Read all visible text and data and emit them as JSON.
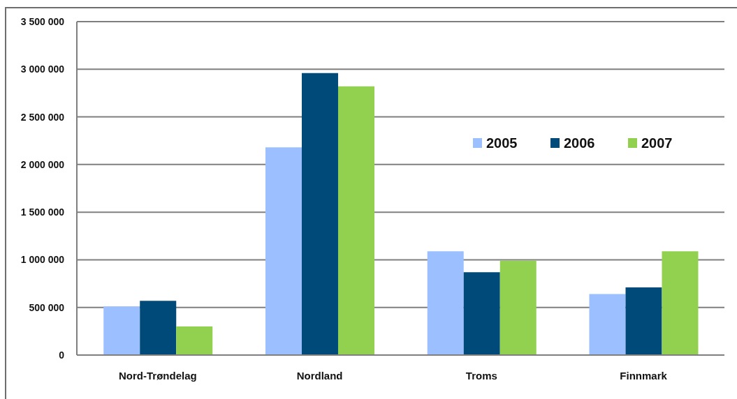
{
  "chart_data": {
    "type": "bar",
    "categories": [
      "Nord-Trøndelag",
      "Nordland",
      "Troms",
      "Finnmark"
    ],
    "series": [
      {
        "name": "2005",
        "color": "#9bbfff",
        "values": [
          510000,
          2180000,
          1090000,
          640000
        ]
      },
      {
        "name": "2006",
        "color": "#004a7a",
        "values": [
          570000,
          2960000,
          870000,
          710000
        ]
      },
      {
        "name": "2007",
        "color": "#92d050",
        "values": [
          300000,
          2820000,
          990000,
          1090000
        ]
      }
    ],
    "ylim": [
      0,
      3500000
    ],
    "yticks": [
      0,
      {
        "value": 500000,
        "label": "500 000"
      },
      {
        "value": 1000000,
        "label": "1 000 000"
      },
      {
        "value": 1500000,
        "label": "1 500 000"
      },
      {
        "value": 2000000,
        "label": "2 000 000"
      },
      {
        "value": 2500000,
        "label": "2 500 000"
      },
      {
        "value": 3000000,
        "label": "3 000 000"
      },
      {
        "value": 3500000,
        "label": "3 500 000"
      }
    ],
    "grid": "y",
    "legend": "right"
  }
}
